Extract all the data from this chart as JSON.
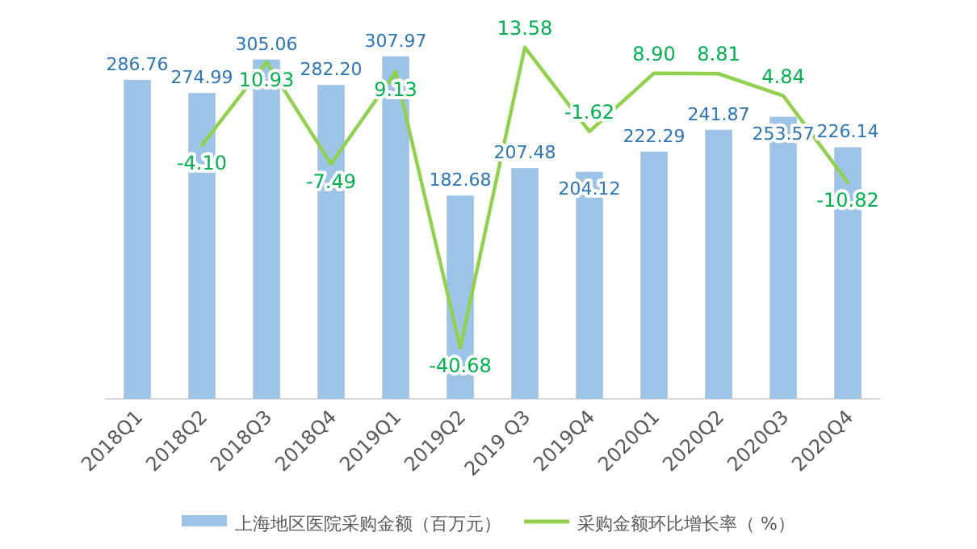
{
  "chart_data": {
    "type": "bar",
    "categories": [
      "2018Q1",
      "2018Q2",
      "2018Q3",
      "2018Q4",
      "2019Q1",
      "2019Q2",
      "2019 Q3",
      "2019Q4",
      "2020Q1",
      "2020Q2",
      "2020Q3",
      "2020Q4"
    ],
    "series": [
      {
        "name": "上海地区医院采购金额（百万元）",
        "color": "#9dc3e6",
        "values": [
          286.76,
          274.99,
          305.06,
          282.2,
          307.97,
          182.68,
          207.48,
          204.12,
          222.29,
          241.87,
          253.57,
          226.14
        ],
        "value_labels": [
          "286.76",
          "274.99",
          "305.06",
          "282.20",
          "307.97",
          "182.68",
          "207.48",
          "204.12",
          "222.29",
          "241.87",
          "253.57",
          "226.14"
        ]
      },
      {
        "name": "采购金额环比增长率（ %）",
        "type": "line",
        "axis": "y2",
        "color": "#92d050",
        "values": [
          null,
          -4.1,
          10.93,
          -7.49,
          9.13,
          -40.68,
          13.58,
          -1.62,
          8.9,
          8.81,
          4.84,
          -10.82
        ],
        "value_labels": [
          null,
          "-4.10",
          "10.93",
          "-7.49",
          "9.13",
          "-40.68",
          "13.58",
          "-1.62",
          "8.90",
          "8.81",
          "4.84",
          "-10.82"
        ]
      }
    ],
    "tick_labels": "x",
    "legend": "bottom"
  }
}
